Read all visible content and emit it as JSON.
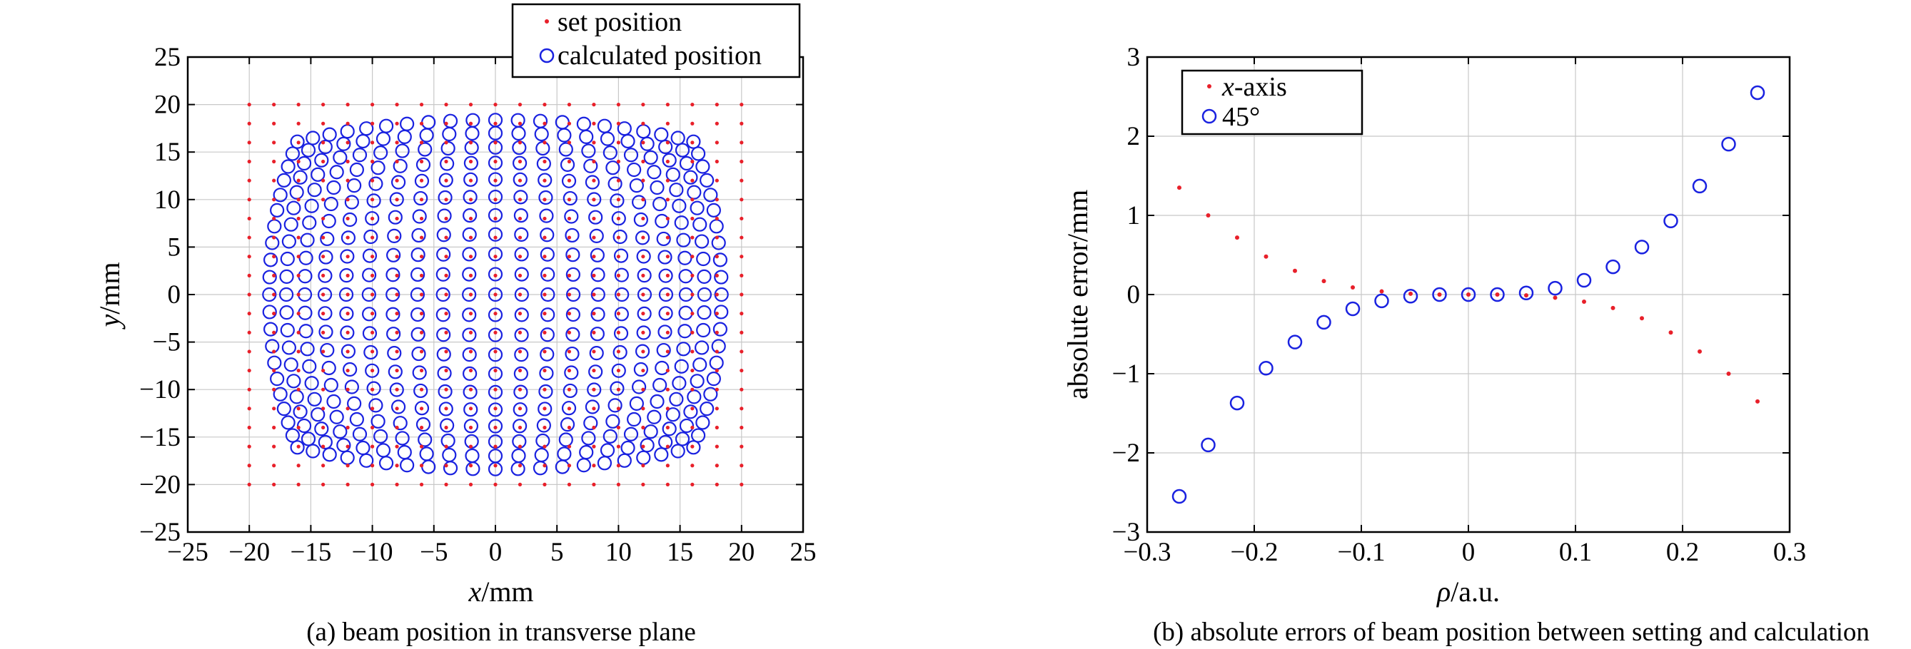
{
  "chart_data": [
    {
      "type": "scatter",
      "title": "",
      "caption": "(a) beam position in transverse plane",
      "xlabel": {
        "var": "x",
        "unit": "/mm"
      },
      "ylabel": {
        "var": "y",
        "unit": "/mm"
      },
      "xlim": [
        -25,
        25
      ],
      "ylim": [
        -25,
        25
      ],
      "xticks": [
        -25,
        -20,
        -15,
        -10,
        -5,
        0,
        5,
        10,
        15,
        20,
        25
      ],
      "yticks": [
        -25,
        -20,
        -15,
        -10,
        -5,
        0,
        5,
        10,
        15,
        20,
        25
      ],
      "grid": true,
      "legend_placement": "top-right, above plot",
      "series": [
        {
          "name": "set position",
          "marker": "dot",
          "color": "#e8202a",
          "grid_spec": {
            "from": -20,
            "to": 20,
            "step": 2
          }
        },
        {
          "name": "calculated position",
          "marker": "open-circle",
          "color": "#1a22e0",
          "grid_spec": {
            "from": -20,
            "to": 20,
            "step": 2
          },
          "barrel_distortion_k": 0.3
        }
      ]
    },
    {
      "type": "scatter",
      "title": "",
      "caption": "(b) absolute errors of beam position between setting and calculation",
      "xlabel": {
        "var": "ρ",
        "unit": "/a.u."
      },
      "ylabel": "absolute error/mm",
      "xlim": [
        -0.3,
        0.3
      ],
      "ylim": [
        -3,
        3
      ],
      "xticks": [
        -0.3,
        -0.2,
        -0.1,
        0,
        0.1,
        0.2,
        0.3
      ],
      "yticks": [
        -3,
        -2,
        -1,
        0,
        1,
        2,
        3
      ],
      "grid": true,
      "legend_placement": "top-left",
      "series": [
        {
          "name": "x-axis",
          "name_italic": "x",
          "name_rest": "-axis",
          "marker": "dot",
          "color": "#e8202a",
          "x": [
            -0.27,
            -0.243,
            -0.216,
            -0.189,
            -0.162,
            -0.135,
            -0.108,
            -0.081,
            -0.054,
            -0.027,
            0,
            0.027,
            0.054,
            0.081,
            0.108,
            0.135,
            0.162,
            0.189,
            0.216,
            0.243,
            0.27
          ],
          "y": [
            1.35,
            1.0,
            0.72,
            0.48,
            0.3,
            0.17,
            0.09,
            0.04,
            0.01,
            0.0,
            0.0,
            0.0,
            -0.01,
            -0.04,
            -0.09,
            -0.17,
            -0.3,
            -0.48,
            -0.72,
            -1.0,
            -1.35
          ]
        },
        {
          "name": "45°",
          "marker": "open-circle",
          "color": "#1a22e0",
          "x": [
            -0.27,
            -0.243,
            -0.216,
            -0.189,
            -0.162,
            -0.135,
            -0.108,
            -0.081,
            -0.054,
            -0.027,
            0,
            0.027,
            0.054,
            0.081,
            0.108,
            0.135,
            0.162,
            0.189,
            0.216,
            0.243,
            0.27
          ],
          "y": [
            -2.55,
            -1.9,
            -1.37,
            -0.93,
            -0.6,
            -0.35,
            -0.18,
            -0.08,
            -0.02,
            0.0,
            0.0,
            0.0,
            0.02,
            0.08,
            0.18,
            0.35,
            0.6,
            0.93,
            1.37,
            1.9,
            2.55
          ]
        }
      ]
    }
  ]
}
